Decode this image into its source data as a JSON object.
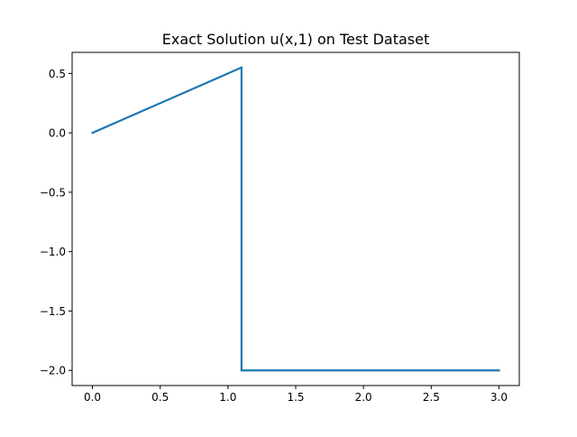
{
  "chart_data": {
    "type": "line",
    "title": "Exact Solution u(x,1) on Test Dataset",
    "xlabel": "",
    "ylabel": "",
    "xlim": [
      -0.15,
      3.15
    ],
    "ylim": [
      -2.1275,
      0.6775
    ],
    "grid": false,
    "xticks": [
      0.0,
      0.5,
      1.0,
      1.5,
      2.0,
      2.5,
      3.0
    ],
    "xtick_labels": [
      "0.0",
      "0.5",
      "1.0",
      "1.5",
      "2.0",
      "2.5",
      "3.0"
    ],
    "yticks": [
      0.5,
      0.0,
      -0.5,
      -1.0,
      -1.5,
      -2.0
    ],
    "ytick_labels": [
      "0.5",
      "0.0",
      "−0.5",
      "−1.0",
      "−1.5",
      "−2.0"
    ],
    "series": [
      {
        "color": "#1f77b4",
        "x": [
          0.0,
          1.1,
          1.1,
          3.0
        ],
        "y": [
          0.0,
          0.55,
          -2.0,
          -2.0
        ]
      }
    ]
  }
}
